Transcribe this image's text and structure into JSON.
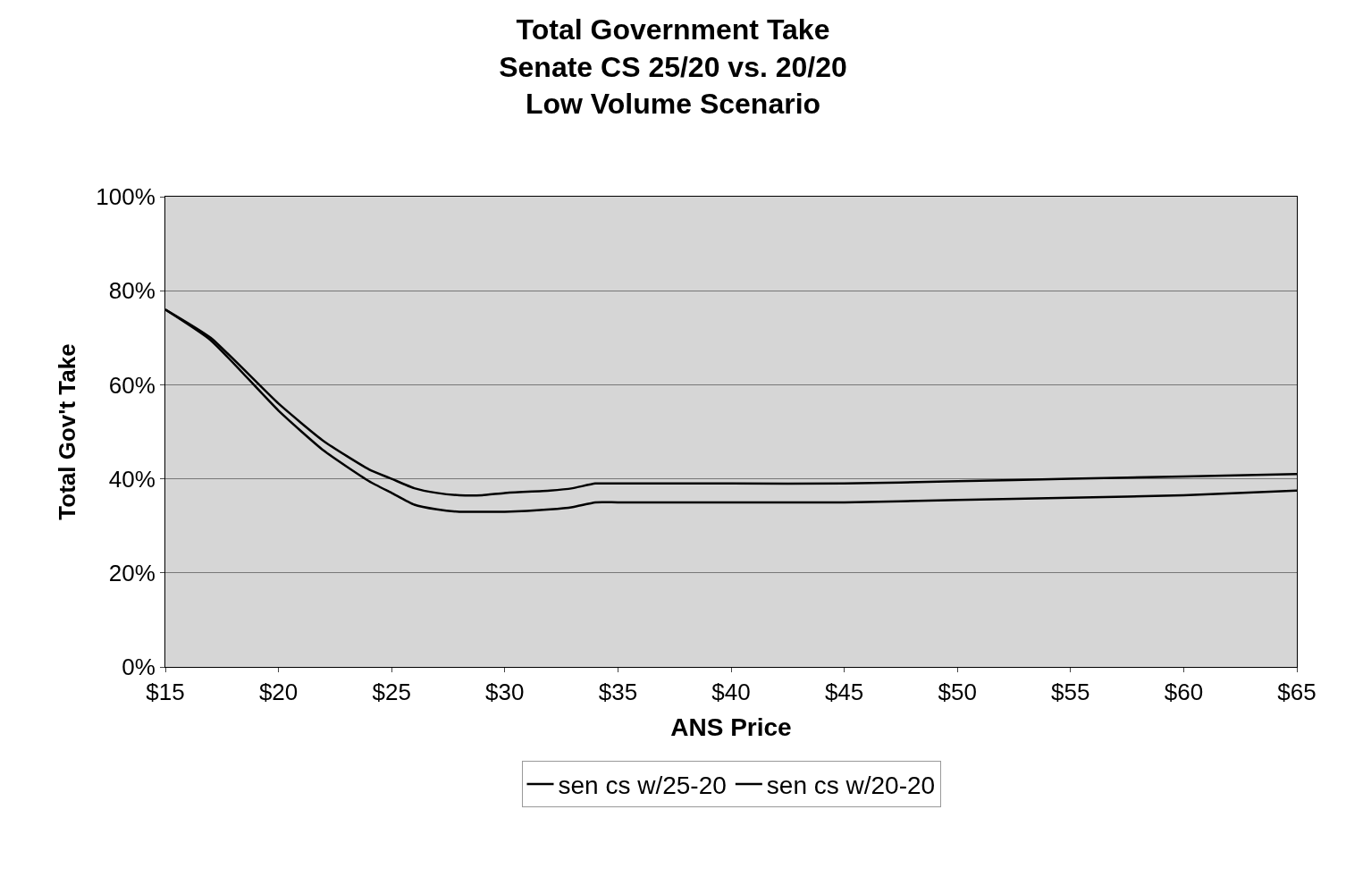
{
  "chart_data": {
    "type": "line",
    "title": "Total Government Take\nSenate CS 25/20 vs. 20/20\nLow Volume Scenario",
    "xlabel": "ANS Price",
    "ylabel": "Total Gov't Take",
    "x": [
      15,
      17,
      20,
      22,
      24,
      25,
      26,
      27,
      28,
      29,
      30,
      32,
      33,
      34,
      35,
      40,
      45,
      50,
      55,
      60,
      65
    ],
    "series": [
      {
        "name": "sen cs w/25-20",
        "color": "#000000",
        "values": [
          76,
          70,
          56,
          48,
          42,
          40,
          38,
          37,
          36.5,
          36.5,
          37,
          37.5,
          38,
          39,
          39,
          39,
          39,
          39.5,
          40,
          40.5,
          41
        ]
      },
      {
        "name": "sen cs w/20-20",
        "color": "#000000",
        "values": [
          76,
          69.5,
          54.5,
          46,
          39.5,
          37,
          34.5,
          33.5,
          33,
          33,
          33,
          33.5,
          34,
          35,
          35,
          35,
          35,
          35.5,
          36,
          36.5,
          37.5
        ]
      }
    ],
    "xlim": [
      15,
      65
    ],
    "xticks": [
      {
        "value": 15,
        "label": "$15"
      },
      {
        "value": 20,
        "label": "$20"
      },
      {
        "value": 25,
        "label": "$25"
      },
      {
        "value": 30,
        "label": "$30"
      },
      {
        "value": 35,
        "label": "$35"
      },
      {
        "value": 40,
        "label": "$40"
      },
      {
        "value": 45,
        "label": "$45"
      },
      {
        "value": 50,
        "label": "$50"
      },
      {
        "value": 55,
        "label": "$55"
      },
      {
        "value": 60,
        "label": "$60"
      },
      {
        "value": 65,
        "label": "$65"
      }
    ],
    "ylim": [
      0,
      100
    ],
    "yticks": [
      {
        "value": 0,
        "label": "0%"
      },
      {
        "value": 20,
        "label": "20%"
      },
      {
        "value": 40,
        "label": "40%"
      },
      {
        "value": 60,
        "label": "60%"
      },
      {
        "value": 80,
        "label": "80%"
      },
      {
        "value": 100,
        "label": "100%"
      }
    ],
    "grid": "y",
    "legend": "bottom",
    "marker": "none",
    "line_style": "solid"
  }
}
